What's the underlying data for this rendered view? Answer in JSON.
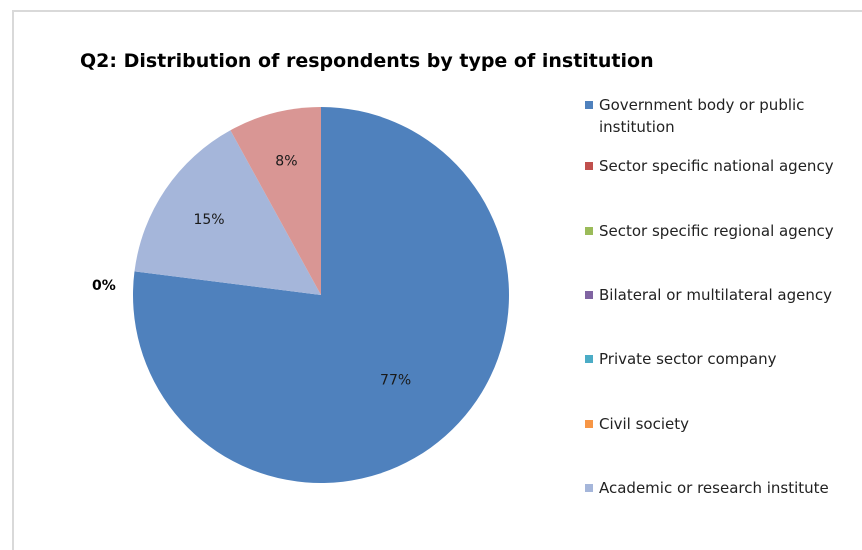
{
  "chart_data": {
    "type": "pie",
    "title": "Q2: Distribution of respondents by type of institution",
    "series": [
      {
        "name": "Government body or public institution",
        "value": 77,
        "label": "77%",
        "color": "#4f81bd"
      },
      {
        "name": "Sector specific national agency",
        "value": 0,
        "label": "",
        "color": "#c0504d"
      },
      {
        "name": "Sector specific regional agency",
        "value": 0,
        "label": "",
        "color": "#9bbb59"
      },
      {
        "name": "Bilateral or multilateral agency",
        "value": 0,
        "label": "",
        "color": "#8064a2"
      },
      {
        "name": "Private sector company",
        "value": 0,
        "label": "",
        "color": "#4bacc6"
      },
      {
        "name": "Civil society",
        "value": 0,
        "label": "",
        "color": "#f79646"
      },
      {
        "name": "Academic or research institute",
        "value": 15,
        "label": "15%",
        "color": "#a5b6da"
      },
      {
        "name": "",
        "value": 8,
        "label": "8%",
        "color": "#d99694"
      }
    ],
    "extra_label": "0%",
    "legend_position": "right",
    "start_angle": "12 o'clock, clockwise"
  }
}
